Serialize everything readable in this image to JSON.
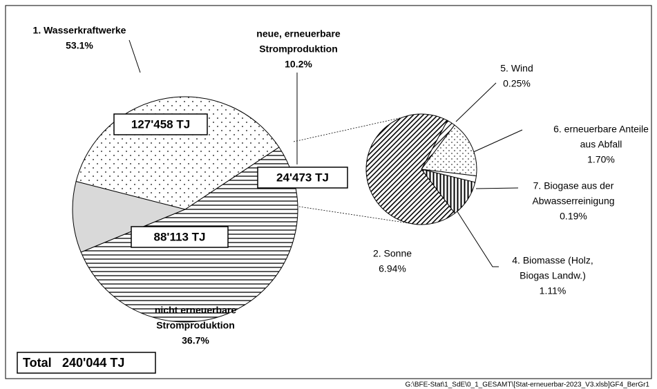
{
  "chart_data": [
    {
      "type": "pie",
      "labels": [
        [
          "1. Wasserkraftwerke"
        ],
        [
          "neue, erneuerbare",
          "Stromproduktion"
        ],
        [
          "nicht erneuerbare",
          "Stromproduktion"
        ]
      ],
      "values": [
        53.1,
        10.2,
        36.7
      ],
      "value_labels": [
        "53.1%",
        "10.2%",
        "36.7%"
      ],
      "energy": [
        127458,
        24473,
        88113
      ],
      "energy_labels": [
        "127'458 TJ",
        "24'473 TJ",
        "88'113 TJ"
      ],
      "patterns": [
        "hlines",
        "grey",
        "dots"
      ]
    },
    {
      "type": "pie",
      "labels": [
        [
          "5. Wind"
        ],
        [
          "6. erneuerbare Anteile",
          "aus Abfall"
        ],
        [
          "7. Biogase aus der",
          "Abwasserreinigung"
        ],
        [
          "4. Biomasse (Holz,",
          "Biogas Landw.)"
        ],
        [
          "2. Sonne"
        ]
      ],
      "values": [
        0.25,
        1.7,
        0.19,
        1.11,
        6.94
      ],
      "value_labels": [
        "0.25%",
        "1.70%",
        "0.19%",
        "1.11%",
        "6.94%"
      ],
      "patterns": [
        "diag",
        "dots2",
        "white",
        "vlines",
        "dense"
      ]
    }
  ],
  "total": {
    "label": "Total",
    "value": 240044,
    "value_label": "240'044 TJ"
  },
  "footer": "G:\\BFE-Stat\\1_SdE\\0_1_GESAMT\\[Stat-erneuerbar-2023_V3.xlsb]GF4_BerGr1"
}
